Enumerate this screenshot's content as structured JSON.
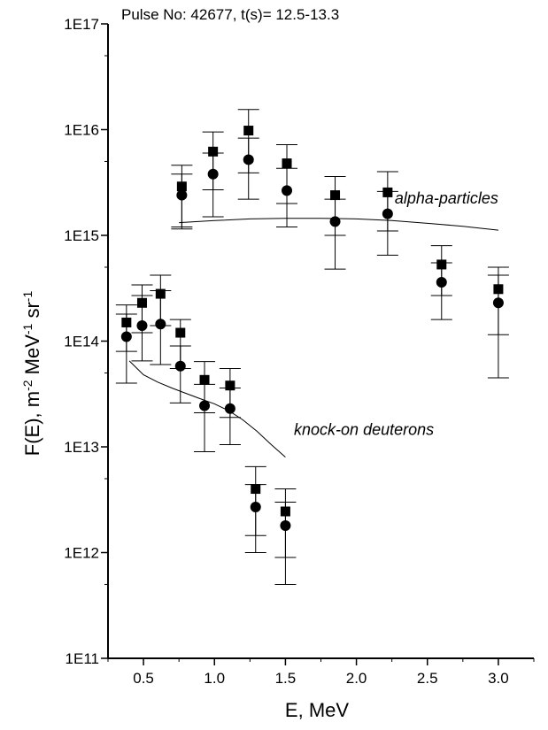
{
  "chart_data": {
    "type": "scatter",
    "title": "Pulse No: 42677, t(s)= 12.5-13.3",
    "xlabel": "E, MeV",
    "ylabel_parts": [
      "F(E), m",
      "-2",
      " MeV",
      "-1",
      " sr",
      "-1"
    ],
    "x_scale": "linear",
    "y_scale": "log",
    "xlim": [
      0.25,
      3.25
    ],
    "ylim": [
      100000000000.0,
      1e+17
    ],
    "x_ticks": [
      0.5,
      1.0,
      1.5,
      2.0,
      2.5,
      3.0
    ],
    "x_tick_labels": [
      "0.5",
      "1.0",
      "1.5",
      "2.0",
      "2.5",
      "3.0"
    ],
    "y_ticks": [
      100000000000.0,
      1000000000000.0,
      10000000000000.0,
      100000000000000.0,
      1000000000000000.0,
      1e+16,
      1e+17
    ],
    "y_tick_labels": [
      "1E11",
      "1E12",
      "1E13",
      "1E14",
      "1E15",
      "1E16",
      "1E17"
    ],
    "series": [
      {
        "marker": "square",
        "points": [
          {
            "x": 0.38,
            "y": 150000000000000.0,
            "lo": 80000000000000.0,
            "hi": 220000000000000.0
          },
          {
            "x": 0.49,
            "y": 230000000000000.0,
            "lo": 120000000000000.0,
            "hi": 340000000000000.0
          },
          {
            "x": 0.62,
            "y": 280000000000000.0,
            "lo": 140000000000000.0,
            "hi": 420000000000000.0
          },
          {
            "x": 0.76,
            "y": 120000000000000.0,
            "lo": 55000000000000.0,
            "hi": 160000000000000.0
          },
          {
            "x": 0.93,
            "y": 43000000000000.0,
            "lo": 21000000000000.0,
            "hi": 64000000000000.0
          },
          {
            "x": 1.11,
            "y": 38000000000000.0,
            "lo": 19000000000000.0,
            "hi": 55000000000000.0
          },
          {
            "x": 1.29,
            "y": 4000000000000.0,
            "lo": 1450000000000.0,
            "hi": 6500000000000.0
          },
          {
            "x": 1.5,
            "y": 2450000000000.0,
            "lo": 900000000000.0,
            "hi": 4000000000000.0
          },
          {
            "x": 0.77,
            "y": 2900000000000000.0,
            "lo": 1200000000000000.0,
            "hi": 4600000000000000.0
          },
          {
            "x": 0.99,
            "y": 6200000000000000.0,
            "lo": 2700000000000000.0,
            "hi": 9500000000000000.0
          },
          {
            "x": 1.24,
            "y": 9800000000000000.0,
            "lo": 3900000000000000.0,
            "hi": 1.55e+16
          },
          {
            "x": 1.51,
            "y": 4800000000000000.0,
            "lo": 2000000000000000.0,
            "hi": 7200000000000000.0
          },
          {
            "x": 1.85,
            "y": 2400000000000000.0,
            "lo": 1000000000000000.0,
            "hi": 3600000000000000.0
          },
          {
            "x": 2.22,
            "y": 2550000000000000.0,
            "lo": 1100000000000000.0,
            "hi": 4000000000000000.0
          },
          {
            "x": 2.6,
            "y": 530000000000000.0,
            "lo": 270000000000000.0,
            "hi": 800000000000000.0
          },
          {
            "x": 3.0,
            "y": 310000000000000.0,
            "lo": 115000000000000.0,
            "hi": 500000000000000.0
          }
        ]
      },
      {
        "marker": "circle",
        "points": [
          {
            "x": 0.38,
            "y": 110000000000000.0,
            "lo": 40000000000000.0,
            "hi": 180000000000000.0
          },
          {
            "x": 0.49,
            "y": 140000000000000.0,
            "lo": 65000000000000.0,
            "hi": 270000000000000.0
          },
          {
            "x": 0.62,
            "y": 145000000000000.0,
            "lo": 60000000000000.0,
            "hi": 300000000000000.0
          },
          {
            "x": 0.76,
            "y": 58000000000000.0,
            "lo": 26000000000000.0,
            "hi": 90000000000000.0
          },
          {
            "x": 0.93,
            "y": 24500000000000.0,
            "lo": 9000000000000.0,
            "hi": 39000000000000.0
          },
          {
            "x": 1.11,
            "y": 23000000000000.0,
            "lo": 10500000000000.0,
            "hi": 36000000000000.0
          },
          {
            "x": 1.29,
            "y": 2700000000000.0,
            "lo": 1000000000000.0,
            "hi": 4400000000000.0
          },
          {
            "x": 1.5,
            "y": 1800000000000.0,
            "lo": 500000000000.0,
            "hi": 3000000000000.0
          },
          {
            "x": 0.77,
            "y": 2400000000000000.0,
            "lo": 1150000000000000.0,
            "hi": 3800000000000000.0
          },
          {
            "x": 0.99,
            "y": 3800000000000000.0,
            "lo": 1500000000000000.0,
            "hi": 6000000000000000.0
          },
          {
            "x": 1.24,
            "y": 5200000000000000.0,
            "lo": 2200000000000000.0,
            "hi": 8300000000000000.0
          },
          {
            "x": 1.51,
            "y": 2650000000000000.0,
            "lo": 1200000000000000.0,
            "hi": 4300000000000000.0
          },
          {
            "x": 1.85,
            "y": 1350000000000000.0,
            "lo": 480000000000000.0,
            "hi": 2200000000000000.0
          },
          {
            "x": 2.22,
            "y": 1600000000000000.0,
            "lo": 650000000000000.0,
            "hi": 2600000000000000.0
          },
          {
            "x": 2.6,
            "y": 360000000000000.0,
            "lo": 160000000000000.0,
            "hi": 550000000000000.0
          },
          {
            "x": 3.0,
            "y": 230000000000000.0,
            "lo": 45000000000000.0,
            "hi": 420000000000000.0
          }
        ]
      }
    ],
    "curves": [
      {
        "label": "alpha-particles",
        "points": [
          [
            0.75,
            1320000000000000.0
          ],
          [
            1.0,
            1380000000000000.0
          ],
          [
            1.25,
            1430000000000000.0
          ],
          [
            1.5,
            1450000000000000.0
          ],
          [
            1.75,
            1450000000000000.0
          ],
          [
            2.0,
            1430000000000000.0
          ],
          [
            2.25,
            1380000000000000.0
          ],
          [
            2.5,
            1300000000000000.0
          ],
          [
            2.75,
            1220000000000000.0
          ],
          [
            3.0,
            1120000000000000.0
          ]
        ]
      },
      {
        "label": "knock-on deuterons",
        "points": [
          [
            0.4,
            65000000000000.0
          ],
          [
            0.5,
            48000000000000.0
          ],
          [
            0.6,
            41000000000000.0
          ],
          [
            0.7,
            36000000000000.0
          ],
          [
            0.8,
            32000000000000.0
          ],
          [
            0.9,
            28500000000000.0
          ],
          [
            1.0,
            25500000000000.0
          ],
          [
            1.1,
            22000000000000.0
          ],
          [
            1.2,
            18000000000000.0
          ],
          [
            1.3,
            14000000000000.0
          ],
          [
            1.4,
            10500000000000.0
          ],
          [
            1.5,
            8000000000000.0
          ]
        ]
      }
    ],
    "annotations": [
      {
        "text": "alpha-particles",
        "x": 2.27,
        "y": 2000000000000000.0
      },
      {
        "text": "knock-on deuterons",
        "x": 1.56,
        "y": 13000000000000.0
      }
    ],
    "legend": "none",
    "grid": false
  }
}
